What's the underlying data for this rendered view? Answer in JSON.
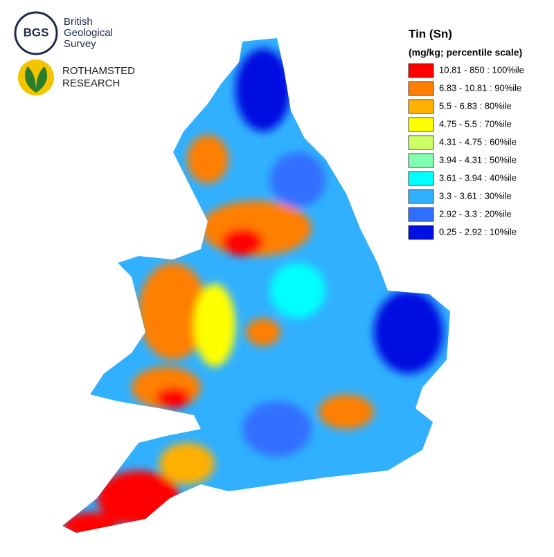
{
  "logos": {
    "bgs": {
      "mark": "BGS",
      "lines": [
        "British",
        "Geological",
        "Survey"
      ]
    },
    "rothamsted": {
      "lines": [
        "ROTHAMSTED",
        "RESEARCH"
      ]
    }
  },
  "legend": {
    "title": "Tin (Sn)",
    "subtitle": "(mg/kg; percentile scale)",
    "items": [
      {
        "label": "10.81 - 850 : 100%ile",
        "color": "#ff0000"
      },
      {
        "label": "6.83 - 10.81 : 90%ile",
        "color": "#ff7f00"
      },
      {
        "label": "5.5 - 6.83 : 80%ile",
        "color": "#ffb000"
      },
      {
        "label": "4.75 - 5.5 : 70%ile",
        "color": "#ffff00"
      },
      {
        "label": "4.31 - 4.75 : 60%ile",
        "color": "#ccff66"
      },
      {
        "label": "3.94 - 4.31 : 50%ile",
        "color": "#80ffb0"
      },
      {
        "label": "3.61 - 3.94 : 40%ile",
        "color": "#00ffff"
      },
      {
        "label": "3.3 - 3.61 : 30%ile",
        "color": "#30b0ff"
      },
      {
        "label": "2.92 - 3.3 : 20%ile",
        "color": "#3070ff"
      },
      {
        "label": "0.25 - 2.92 : 10%ile",
        "color": "#0010e0"
      }
    ]
  }
}
